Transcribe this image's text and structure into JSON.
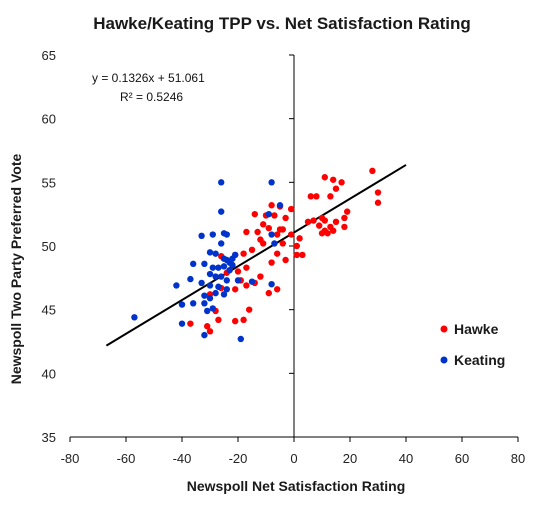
{
  "chart_data": {
    "type": "scatter",
    "title": "Hawke/Keating TPP vs. Net Satisfaction Rating",
    "xlabel": "Newspoll Net Satisfaction Rating",
    "ylabel": "Newspoll Two Party Preferred Vote",
    "xlim": [
      -80,
      80
    ],
    "ylim": [
      35,
      65
    ],
    "xticks": [
      -80,
      -60,
      -40,
      -20,
      0,
      20,
      40,
      60,
      80
    ],
    "yticks": [
      35,
      40,
      45,
      50,
      55,
      60,
      65
    ],
    "xtick_labels": [
      "-80",
      "-60",
      "-40",
      "-20",
      "0",
      "20",
      "40",
      "60",
      "80"
    ],
    "ytick_labels": [
      "35",
      "40",
      "45",
      "50",
      "55",
      "60",
      "65"
    ],
    "grid": false,
    "legend_position": "right",
    "trendline": {
      "slope": 0.1326,
      "intercept": 51.061,
      "x_range": [
        -67,
        40
      ],
      "equation_text": "y = 0.1326x  + 51.061",
      "r2_text": "R² = 0.5246",
      "color": "#000000"
    },
    "series": [
      {
        "name": "Hawke",
        "color": "#ff0000",
        "points": [
          [
            28,
            55.9
          ],
          [
            30,
            54.2
          ],
          [
            30,
            53.4
          ],
          [
            11,
            55.4
          ],
          [
            14,
            55.2
          ],
          [
            17,
            55.0
          ],
          [
            15,
            54.5
          ],
          [
            6,
            53.9
          ],
          [
            8,
            53.9
          ],
          [
            13,
            53.9
          ],
          [
            -8,
            53.2
          ],
          [
            -5,
            53.1
          ],
          [
            -1,
            52.9
          ],
          [
            -14,
            52.5
          ],
          [
            -10,
            52.4
          ],
          [
            -7,
            52.4
          ],
          [
            -3,
            52.2
          ],
          [
            10,
            52.2
          ],
          [
            18,
            52.2
          ],
          [
            19,
            52.7
          ],
          [
            7,
            52.0
          ],
          [
            11,
            52.0
          ],
          [
            15,
            51.9
          ],
          [
            5,
            51.9
          ],
          [
            -11,
            51.7
          ],
          [
            9,
            51.6
          ],
          [
            13,
            51.5
          ],
          [
            18,
            51.5
          ],
          [
            -9,
            51.4
          ],
          [
            -4,
            51.3
          ],
          [
            11,
            51.2
          ],
          [
            14,
            51.2
          ],
          [
            10,
            51.0
          ],
          [
            12,
            51.0
          ],
          [
            -1,
            50.9
          ],
          [
            -6,
            50.9
          ],
          [
            -5,
            51.3
          ],
          [
            -13,
            51.1
          ],
          [
            -17,
            51.1
          ],
          [
            2,
            50.6
          ],
          [
            -12,
            50.5
          ],
          [
            -11,
            50.2
          ],
          [
            -4,
            50.2
          ],
          [
            1,
            50.0
          ],
          [
            -15,
            49.7
          ],
          [
            -6,
            49.4
          ],
          [
            1,
            49.3
          ],
          [
            3,
            49.3
          ],
          [
            -18,
            49.4
          ],
          [
            -21,
            49.3
          ],
          [
            -8,
            48.7
          ],
          [
            -3,
            48.9
          ],
          [
            -26,
            49.2
          ],
          [
            -22,
            48.5
          ],
          [
            -17,
            48.3
          ],
          [
            -20,
            48.0
          ],
          [
            -24,
            47.9
          ],
          [
            -12,
            47.6
          ],
          [
            -19,
            47.3
          ],
          [
            -14,
            47.1
          ],
          [
            -17,
            46.9
          ],
          [
            -21,
            46.6
          ],
          [
            -9,
            46.3
          ],
          [
            -6,
            46.6
          ],
          [
            -26,
            46.7
          ],
          [
            -30,
            46.2
          ],
          [
            -16,
            45.0
          ],
          [
            -28,
            44.9
          ],
          [
            -27,
            44.2
          ],
          [
            -21,
            44.1
          ],
          [
            -18,
            44.2
          ],
          [
            -37,
            43.9
          ],
          [
            -31,
            43.7
          ],
          [
            -30,
            43.3
          ]
        ]
      },
      {
        "name": "Keating",
        "color": "#0033cc",
        "points": [
          [
            -26,
            55.0
          ],
          [
            -8,
            55.0
          ],
          [
            -26,
            52.7
          ],
          [
            -5,
            53.2
          ],
          [
            -9,
            52.5
          ],
          [
            -33,
            50.8
          ],
          [
            -29,
            50.9
          ],
          [
            -25,
            51.0
          ],
          [
            -24,
            50.9
          ],
          [
            -8,
            50.9
          ],
          [
            -7,
            50.2
          ],
          [
            -26,
            50.2
          ],
          [
            -28,
            49.4
          ],
          [
            -30,
            49.5
          ],
          [
            -25,
            49.0
          ],
          [
            -22,
            49.0
          ],
          [
            -21,
            49.3
          ],
          [
            -23,
            48.7
          ],
          [
            -36,
            48.6
          ],
          [
            -32,
            48.6
          ],
          [
            -29,
            48.3
          ],
          [
            -27,
            48.3
          ],
          [
            -25,
            48.4
          ],
          [
            -23,
            48.1
          ],
          [
            -22,
            48.5
          ],
          [
            -30,
            47.8
          ],
          [
            -28,
            47.6
          ],
          [
            -26,
            47.6
          ],
          [
            -24,
            47.3
          ],
          [
            -20,
            47.3
          ],
          [
            -37,
            47.4
          ],
          [
            -42,
            46.9
          ],
          [
            -33,
            47.1
          ],
          [
            -30,
            46.9
          ],
          [
            -27,
            46.8
          ],
          [
            -24,
            46.6
          ],
          [
            -28,
            46.3
          ],
          [
            -25,
            46.2
          ],
          [
            -32,
            46.1
          ],
          [
            -30,
            45.9
          ],
          [
            -36,
            45.5
          ],
          [
            -40,
            45.4
          ],
          [
            -32,
            45.5
          ],
          [
            -29,
            45.1
          ],
          [
            -31,
            44.9
          ],
          [
            -57,
            44.4
          ],
          [
            -40,
            43.9
          ],
          [
            -19,
            42.7
          ],
          [
            -32,
            43.0
          ],
          [
            -15,
            47.2
          ],
          [
            -8,
            47.0
          ],
          [
            -24,
            48.9
          ]
        ]
      }
    ]
  }
}
